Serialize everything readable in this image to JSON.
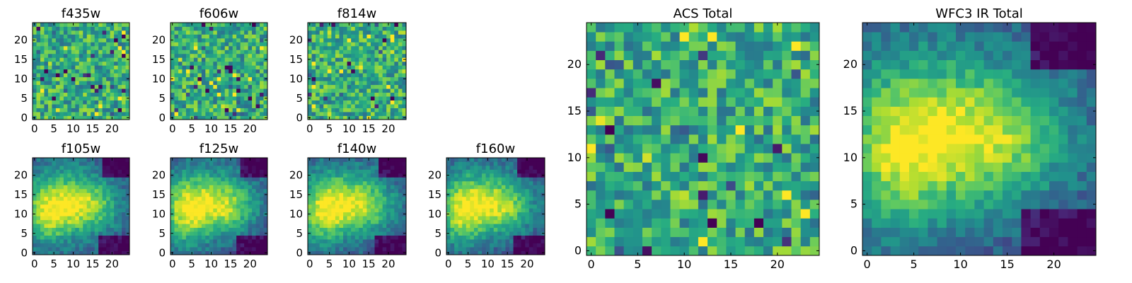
{
  "chart_data": [
    {
      "type": "heatmap",
      "title": "f435w",
      "xticks": [
        "0",
        "5",
        "10",
        "15",
        "20"
      ],
      "yticks": [
        "0",
        "5",
        "10",
        "15",
        "20"
      ],
      "xlim": [
        -0.5,
        24.5
      ],
      "ylim": [
        -0.5,
        24.5
      ],
      "n": 25,
      "colormap": "viridis",
      "pattern": "noise"
    },
    {
      "type": "heatmap",
      "title": "f606w",
      "xticks": [
        "0",
        "5",
        "10",
        "15",
        "20"
      ],
      "yticks": [
        "0",
        "5",
        "10",
        "15",
        "20"
      ],
      "xlim": [
        -0.5,
        24.5
      ],
      "ylim": [
        -0.5,
        24.5
      ],
      "n": 25,
      "colormap": "viridis",
      "pattern": "noise"
    },
    {
      "type": "heatmap",
      "title": "f814w",
      "xticks": [
        "0",
        "5",
        "10",
        "15",
        "20"
      ],
      "yticks": [
        "0",
        "5",
        "10",
        "15",
        "20"
      ],
      "xlim": [
        -0.5,
        24.5
      ],
      "ylim": [
        -0.5,
        24.5
      ],
      "n": 25,
      "colormap": "viridis",
      "pattern": "noise"
    },
    {
      "type": "heatmap",
      "title": "f105w",
      "xticks": [
        "0",
        "5",
        "10",
        "15",
        "20"
      ],
      "yticks": [
        "0",
        "5",
        "10",
        "15",
        "20"
      ],
      "xlim": [
        -0.5,
        24.5
      ],
      "ylim": [
        -0.5,
        24.5
      ],
      "n": 25,
      "colormap": "viridis",
      "pattern": "blob"
    },
    {
      "type": "heatmap",
      "title": "f125w",
      "xticks": [
        "0",
        "5",
        "10",
        "15",
        "20"
      ],
      "yticks": [
        "0",
        "5",
        "10",
        "15",
        "20"
      ],
      "xlim": [
        -0.5,
        24.5
      ],
      "ylim": [
        -0.5,
        24.5
      ],
      "n": 25,
      "colormap": "viridis",
      "pattern": "blob"
    },
    {
      "type": "heatmap",
      "title": "f140w",
      "xticks": [
        "0",
        "5",
        "10",
        "15",
        "20"
      ],
      "yticks": [
        "0",
        "5",
        "10",
        "15",
        "20"
      ],
      "xlim": [
        -0.5,
        24.5
      ],
      "ylim": [
        -0.5,
        24.5
      ],
      "n": 25,
      "colormap": "viridis",
      "pattern": "blob"
    },
    {
      "type": "heatmap",
      "title": "f160w",
      "xticks": [
        "0",
        "5",
        "10",
        "15",
        "20"
      ],
      "yticks": [
        "0",
        "5",
        "10",
        "15",
        "20"
      ],
      "xlim": [
        -0.5,
        24.5
      ],
      "ylim": [
        -0.5,
        24.5
      ],
      "n": 25,
      "colormap": "viridis",
      "pattern": "blob"
    },
    {
      "type": "heatmap",
      "title": "ACS Total",
      "xticks": [
        "0",
        "5",
        "10",
        "15",
        "20"
      ],
      "yticks": [
        "0",
        "5",
        "10",
        "15",
        "20"
      ],
      "xlim": [
        -0.5,
        24.5
      ],
      "ylim": [
        -0.5,
        24.5
      ],
      "n": 25,
      "colormap": "viridis",
      "pattern": "noise"
    },
    {
      "type": "heatmap",
      "title": "WFC3 IR Total",
      "xticks": [
        "0",
        "5",
        "10",
        "15",
        "20"
      ],
      "yticks": [
        "0",
        "5",
        "10",
        "15",
        "20"
      ],
      "xlim": [
        -0.5,
        24.5
      ],
      "ylim": [
        -0.5,
        24.5
      ],
      "n": 25,
      "colormap": "viridis",
      "pattern": "blob"
    }
  ]
}
